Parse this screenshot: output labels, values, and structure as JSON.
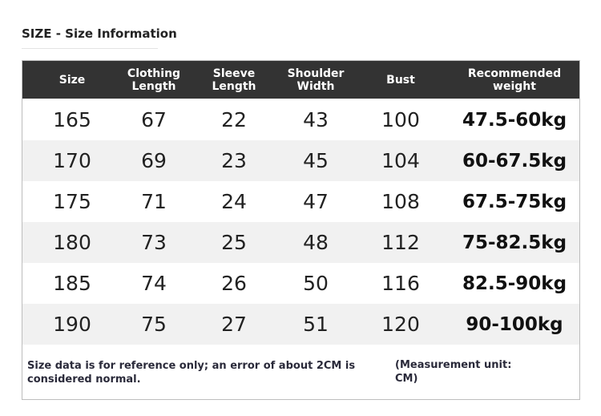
{
  "header": {
    "title": "SIZE - Size Information"
  },
  "table": {
    "columns": [
      "Size",
      "Clothing\nLength",
      "Sleeve\nLength",
      "Shoulder\nWidth",
      "Bust",
      "Recommended\nweight"
    ],
    "rows": [
      [
        "165",
        "67",
        "22",
        "43",
        "100",
        "47.5-60kg"
      ],
      [
        "170",
        "69",
        "23",
        "45",
        "104",
        "60-67.5kg"
      ],
      [
        "175",
        "71",
        "24",
        "47",
        "108",
        "67.5-75kg"
      ],
      [
        "180",
        "73",
        "25",
        "48",
        "112",
        "75-82.5kg"
      ],
      [
        "185",
        "74",
        "26",
        "50",
        "116",
        "82.5-90kg"
      ],
      [
        "190",
        "75",
        "27",
        "51",
        "120",
        "90-100kg"
      ]
    ]
  },
  "footer": {
    "note": "Size data is for reference only; an error of about 2CM is considered normal.",
    "unit": "(Measurement unit: CM)"
  }
}
